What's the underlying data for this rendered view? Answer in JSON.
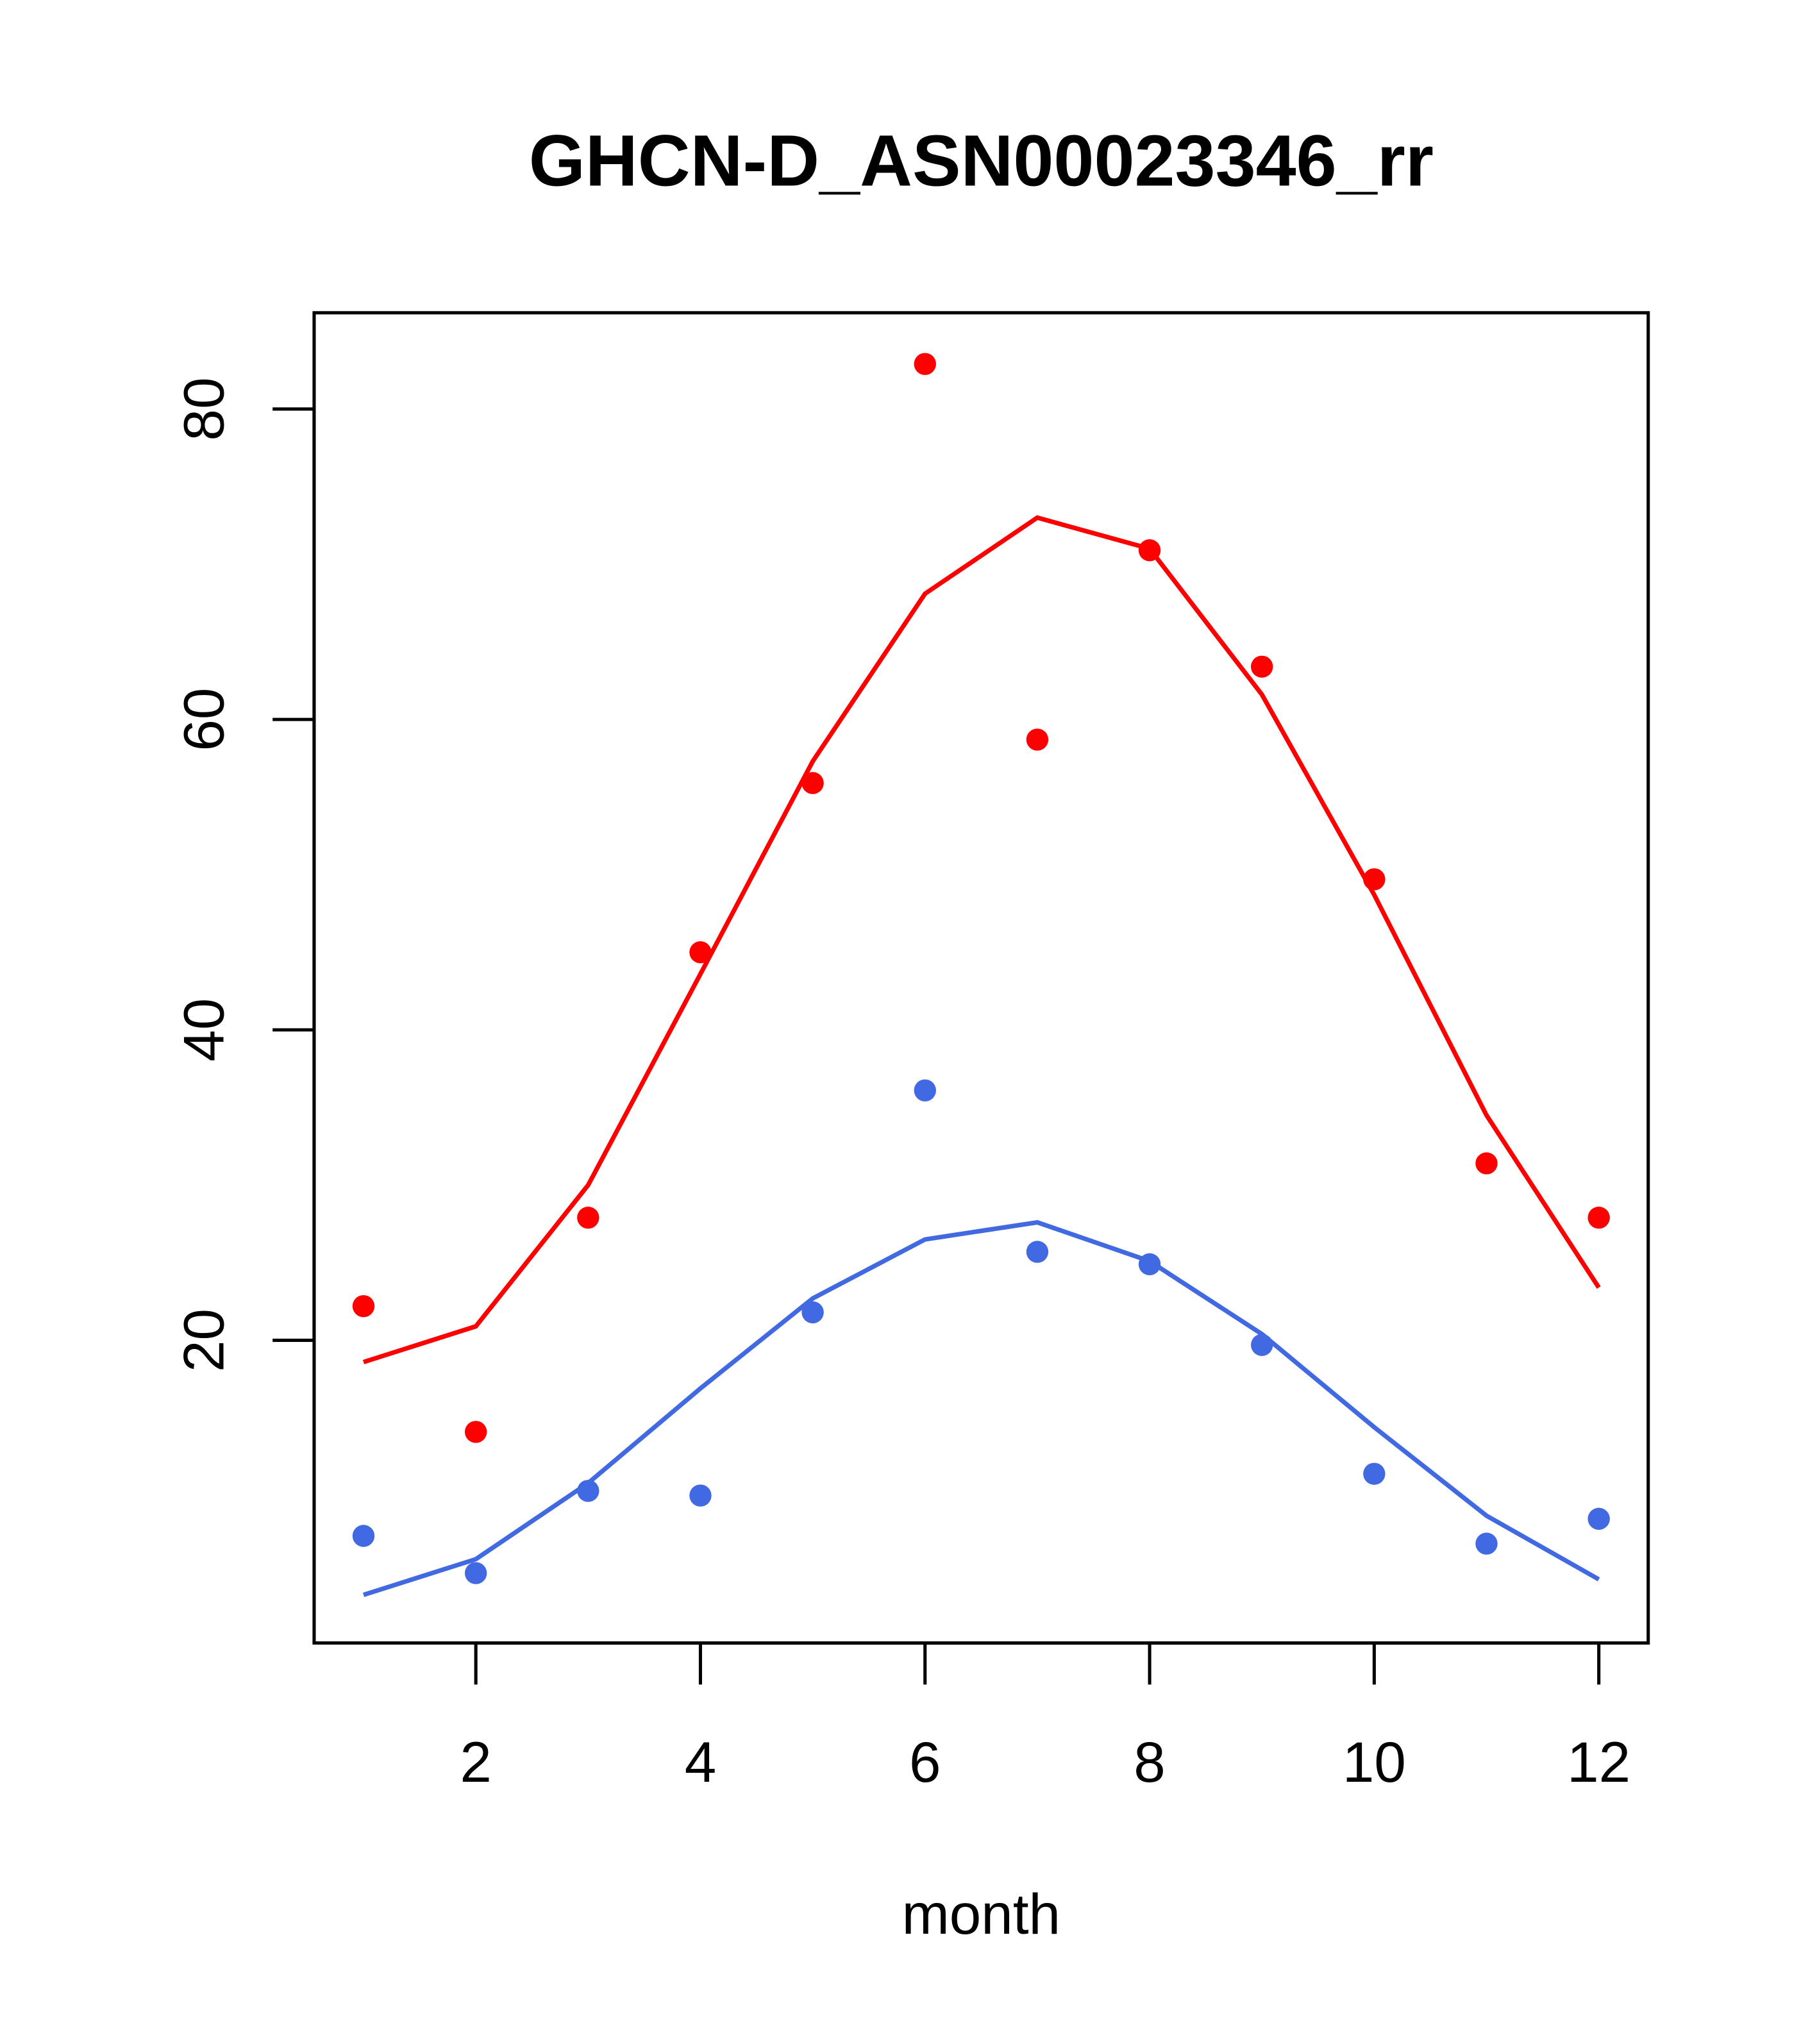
{
  "chart_data": {
    "type": "scatter",
    "title": "GHCN-D_ASN00023346_rr",
    "xlabel": "month",
    "ylabel": "",
    "xlim": [
      0.56,
      12.44
    ],
    "ylim": [
      0.5,
      86.2
    ],
    "x": [
      1,
      2,
      3,
      4,
      5,
      6,
      7,
      8,
      9,
      10,
      11,
      12
    ],
    "xticks": [
      2,
      4,
      6,
      8,
      10,
      12
    ],
    "yticks": [
      20,
      40,
      60,
      80
    ],
    "xtick_labels": [
      "2",
      "4",
      "6",
      "8",
      "10",
      "12"
    ],
    "ytick_labels": [
      "20",
      "40",
      "60",
      "80"
    ],
    "grid": false,
    "series": [
      {
        "name": "red points",
        "kind": "points",
        "color": "#ff0000",
        "values": [
          22.2,
          14.1,
          27.9,
          45.0,
          55.9,
          82.9,
          58.7,
          70.9,
          63.4,
          49.7,
          31.4,
          27.9
        ]
      },
      {
        "name": "red line",
        "kind": "line",
        "color": "#ff0000",
        "values": [
          18.6,
          20.9,
          30.0,
          43.6,
          57.3,
          68.1,
          73.0,
          71.0,
          61.6,
          48.7,
          34.5,
          23.4
        ]
      },
      {
        "name": "blue points",
        "kind": "points",
        "color": "#4169e1",
        "values": [
          7.4,
          5.0,
          10.3,
          10.0,
          21.8,
          36.1,
          25.7,
          24.9,
          19.7,
          11.4,
          6.9,
          8.5
        ]
      },
      {
        "name": "blue line",
        "kind": "line",
        "color": "#4169e1",
        "values": [
          3.6,
          5.9,
          10.8,
          16.9,
          22.7,
          26.5,
          27.6,
          25.1,
          20.4,
          14.4,
          8.7,
          4.6
        ]
      }
    ]
  }
}
